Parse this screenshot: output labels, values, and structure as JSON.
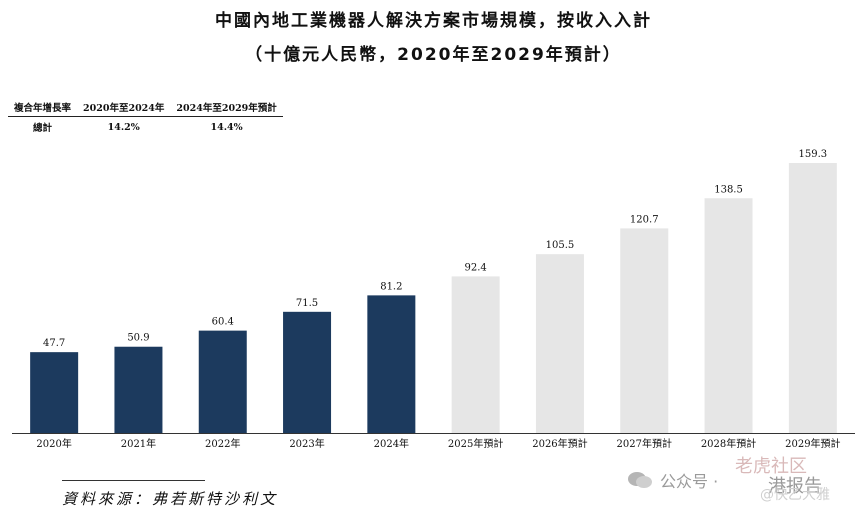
{
  "title": "中國內地工業機器人解決方案市場規模，按收入入計",
  "subtitle": "（十億元人民幣，2020年至2029年預計）",
  "cagr_table": {
    "header": [
      "複合年增長率",
      "2020年至2024年",
      "2024年至2029年預計"
    ],
    "row": [
      "總計",
      "14.2%",
      "14.4%"
    ]
  },
  "source": "資料來源：弗若斯特沙利文",
  "watermarks": {
    "wechat": "公众号 ·",
    "brand": "老虎社区",
    "report": "港报告",
    "user": "@快乙大雅"
  },
  "colors": {
    "historical": "#1c3a5e",
    "forecast": "#e6e6e6"
  },
  "chart_data": {
    "type": "bar",
    "categories": [
      "2020年",
      "2021年",
      "2022年",
      "2023年",
      "2024年",
      "2025年預計",
      "2026年預計",
      "2027年預計",
      "2028年預計",
      "2029年預計"
    ],
    "values": [
      47.7,
      50.9,
      60.4,
      71.5,
      81.2,
      92.4,
      105.5,
      120.7,
      138.5,
      159.3
    ],
    "forecast_from_index": 5,
    "data_labels": [
      "47.7",
      "50.9",
      "60.4",
      "71.5",
      "81.2",
      "92.4",
      "105.5",
      "120.7",
      "138.5",
      "159.3"
    ],
    "ylim": [
      0,
      159.3
    ],
    "grid": false,
    "legend": "none"
  }
}
